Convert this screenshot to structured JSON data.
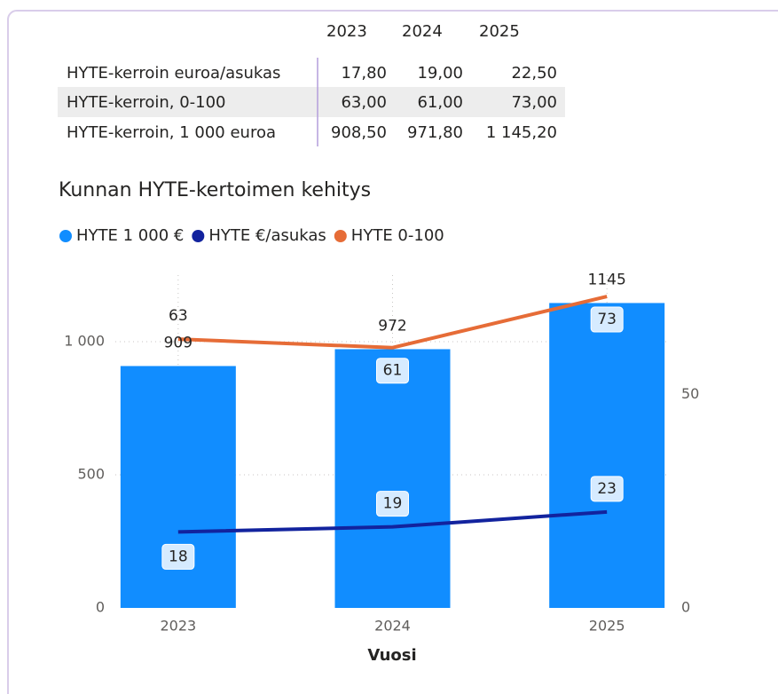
{
  "table": {
    "columns": [
      "2023",
      "2024",
      "2025"
    ],
    "rows": [
      {
        "label": "HYTE-kerroin euroa/asukas",
        "cells": [
          "17,80",
          "19,00",
          "22,50"
        ]
      },
      {
        "label": "HYTE-kerroin, 0-100",
        "cells": [
          "63,00",
          "61,00",
          "73,00"
        ]
      },
      {
        "label": "HYTE-kerroin, 1 000 euroa",
        "cells": [
          "908,50",
          "971,80",
          "1 145,20"
        ]
      }
    ]
  },
  "chart_data": {
    "type": "bar-line",
    "title": "Kunnan HYTE-kertoimen kehitys",
    "x_label": "Vuosi",
    "categories": [
      "2023",
      "2024",
      "2025"
    ],
    "series": [
      {
        "name": "HYTE 1 000 €",
        "color": "#118dff",
        "type": "bar",
        "values": [
          908.5,
          971.8,
          1145.2
        ],
        "value_labels": [
          "909",
          "972",
          "1145"
        ]
      },
      {
        "name": "HYTE €/asukas",
        "color": "#12239e",
        "type": "line",
        "axis": "y2",
        "values": [
          17.8,
          19,
          22.5
        ],
        "value_labels": [
          "18",
          "19",
          "23"
        ]
      },
      {
        "name": "HYTE 0-100",
        "color": "#e66c37",
        "type": "line",
        "axis": "y2",
        "values": [
          63,
          61,
          73
        ],
        "value_labels": [
          "63",
          "61",
          "73"
        ]
      }
    ],
    "ylim": [
      0,
      1250
    ],
    "yticks": [
      0,
      500,
      {
        "value": 1000,
        "label": "1 000"
      }
    ],
    "y2lim": [
      0,
      78
    ],
    "y2ticks": [
      0,
      50
    ],
    "grid": true,
    "legend": "top-left"
  }
}
